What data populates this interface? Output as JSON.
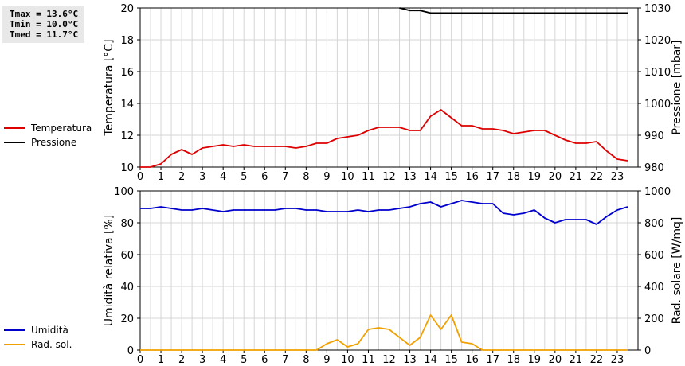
{
  "stats": [
    "Tmax = 13.6°C",
    "Tmin = 10.0°C",
    "Tmed = 11.7°C"
  ],
  "chart_data": [
    {
      "type": "line",
      "x_ticks": [
        "0",
        "1",
        "2",
        "3",
        "4",
        "5",
        "6",
        "7",
        "8",
        "9",
        "10",
        "11",
        "12",
        "13",
        "14",
        "15",
        "16",
        "17",
        "18",
        "19",
        "20",
        "21",
        "22",
        "23"
      ],
      "xlim": [
        0,
        24
      ],
      "ylabel": "Temperatura [°C]",
      "ylim": [
        10,
        20
      ],
      "y_ticks": [
        10,
        12,
        14,
        16,
        18,
        20
      ],
      "y2label": "Pressione [mbar]",
      "y2lim": [
        980,
        1030
      ],
      "y2_ticks": [
        980,
        990,
        1000,
        1010,
        1020,
        1030
      ],
      "grid": true,
      "legend": "left",
      "series": [
        {
          "name": "Temperatura",
          "axis": "left",
          "color": "#dd0000",
          "x": [
            0,
            0.5,
            1,
            1.5,
            2,
            2.5,
            3,
            3.5,
            4,
            4.5,
            5,
            5.5,
            6,
            6.5,
            7,
            7.5,
            8,
            8.5,
            9,
            9.5,
            10,
            10.5,
            11,
            11.5,
            12,
            12.5,
            13,
            13.5,
            14,
            14.5,
            15,
            15.5,
            16,
            16.5,
            17,
            17.5,
            18,
            18.5,
            19,
            19.5,
            20,
            20.5,
            21,
            21.5,
            22,
            22.5,
            23,
            23.5
          ],
          "values": [
            10.0,
            10.0,
            10.2,
            10.8,
            11.1,
            10.8,
            11.2,
            11.3,
            11.4,
            11.3,
            11.4,
            11.3,
            11.3,
            11.3,
            11.3,
            11.2,
            11.3,
            11.5,
            11.5,
            11.8,
            11.9,
            12.0,
            12.3,
            12.5,
            12.5,
            12.5,
            12.3,
            12.3,
            13.2,
            13.6,
            13.1,
            12.6,
            12.6,
            12.4,
            12.4,
            12.3,
            12.1,
            12.2,
            12.3,
            12.3,
            12.0,
            11.7,
            11.5,
            11.5,
            11.6,
            11.0,
            10.5,
            10.4
          ]
        },
        {
          "name": "Pressione",
          "axis": "right",
          "color": "#000000",
          "x": [
            12.5,
            13,
            13.5,
            14,
            14.5,
            15,
            15.5,
            16,
            16.5,
            17,
            17.5,
            18,
            18.5,
            19,
            19.5,
            20,
            20.5,
            21,
            21.5,
            22,
            22.5,
            23,
            23.5
          ],
          "values": [
            1030,
            1029.2,
            1029.2,
            1028.4,
            1028.4,
            1028.4,
            1028.4,
            1028.4,
            1028.4,
            1028.4,
            1028.4,
            1028.4,
            1028.4,
            1028.4,
            1028.4,
            1028.4,
            1028.4,
            1028.4,
            1028.4,
            1028.4,
            1028.4,
            1028.4,
            1028.4
          ]
        }
      ]
    },
    {
      "type": "line",
      "x_ticks": [
        "0",
        "1",
        "2",
        "3",
        "4",
        "5",
        "6",
        "7",
        "8",
        "9",
        "10",
        "11",
        "12",
        "13",
        "14",
        "15",
        "16",
        "17",
        "18",
        "19",
        "20",
        "21",
        "22",
        "23"
      ],
      "xlim": [
        0,
        24
      ],
      "ylabel": "Umidità relativa [%]",
      "ylim": [
        0,
        100
      ],
      "y_ticks": [
        0,
        20,
        40,
        60,
        80,
        100
      ],
      "y2label": "Rad. solare [W/mq]",
      "y2lim": [
        0,
        1000
      ],
      "y2_ticks": [
        0,
        200,
        400,
        600,
        800,
        1000
      ],
      "grid": true,
      "legend": "left",
      "series": [
        {
          "name": "Umidità",
          "axis": "left",
          "color": "#0000cc",
          "x": [
            0,
            0.5,
            1,
            1.5,
            2,
            2.5,
            3,
            3.5,
            4,
            4.5,
            5,
            5.5,
            6,
            6.5,
            7,
            7.5,
            8,
            8.5,
            9,
            9.5,
            10,
            10.5,
            11,
            11.5,
            12,
            12.5,
            13,
            13.5,
            14,
            14.5,
            15,
            15.5,
            16,
            16.5,
            17,
            17.5,
            18,
            18.5,
            19,
            19.5,
            20,
            20.5,
            21,
            21.5,
            22,
            22.5,
            23,
            23.5
          ],
          "values": [
            89,
            89,
            90,
            89,
            88,
            88,
            89,
            88,
            87,
            88,
            88,
            88,
            88,
            88,
            89,
            89,
            88,
            88,
            87,
            87,
            87,
            88,
            87,
            88,
            88,
            89,
            90,
            92,
            93,
            90,
            92,
            94,
            93,
            92,
            92,
            86,
            85,
            86,
            88,
            83,
            80,
            82,
            82,
            82,
            79,
            84,
            88,
            90
          ]
        },
        {
          "name": "Rad. sol.",
          "axis": "right",
          "color": "#f0a000",
          "x": [
            0,
            0.5,
            1,
            1.5,
            2,
            2.5,
            3,
            3.5,
            4,
            4.5,
            5,
            5.5,
            6,
            6.5,
            7,
            7.5,
            8,
            8.5,
            9,
            9.5,
            10,
            10.5,
            11,
            11.5,
            12,
            12.5,
            13,
            13.5,
            14,
            14.5,
            15,
            15.5,
            16,
            16.5,
            17,
            17.5,
            18,
            18.5,
            19,
            19.5,
            20,
            20.5,
            21,
            21.5,
            22,
            22.5,
            23,
            23.5
          ],
          "values": [
            0,
            0,
            0,
            0,
            0,
            0,
            0,
            0,
            0,
            0,
            0,
            0,
            0,
            0,
            0,
            0,
            0,
            0,
            40,
            65,
            20,
            40,
            130,
            140,
            130,
            80,
            30,
            80,
            220,
            130,
            220,
            50,
            40,
            0,
            0,
            0,
            0,
            0,
            0,
            0,
            0,
            0,
            0,
            0,
            0,
            0,
            0,
            0
          ]
        }
      ]
    }
  ]
}
